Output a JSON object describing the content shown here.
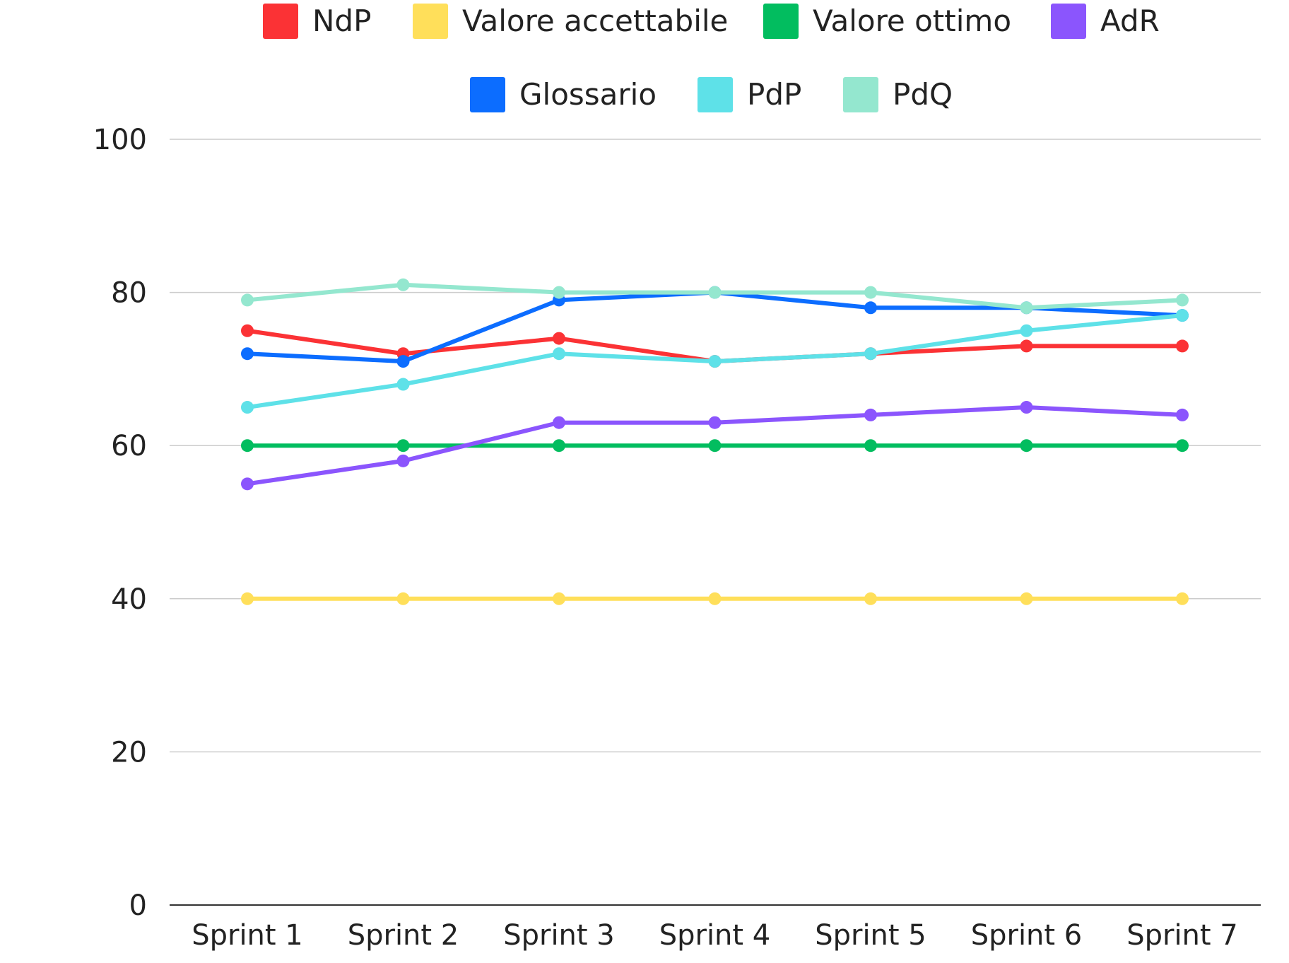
{
  "chart_data": {
    "type": "line",
    "title": "",
    "xlabel": "",
    "ylabel": "",
    "ylim": [
      0,
      100
    ],
    "yticks": [
      0,
      20,
      40,
      60,
      80,
      100
    ],
    "grid": true,
    "legend_position": "top",
    "categories": [
      "Sprint 1",
      "Sprint 2",
      "Sprint 3",
      "Sprint 4",
      "Sprint 5",
      "Sprint 6",
      "Sprint 7"
    ],
    "series": [
      {
        "name": "NdP",
        "color": "#fb3235",
        "values": [
          75,
          72,
          74,
          71,
          72,
          73,
          73
        ]
      },
      {
        "name": "Valore accettabile",
        "color": "#ffdf5a",
        "values": [
          40,
          40,
          40,
          40,
          40,
          40,
          40
        ]
      },
      {
        "name": "Valore ottimo",
        "color": "#02bd5f",
        "values": [
          60,
          60,
          60,
          60,
          60,
          60,
          60
        ]
      },
      {
        "name": "AdR",
        "color": "#8b55fd",
        "values": [
          55,
          58,
          63,
          63,
          64,
          65,
          64
        ]
      },
      {
        "name": "Glossario",
        "color": "#0c6dff",
        "values": [
          72,
          71,
          79,
          80,
          78,
          78,
          77
        ]
      },
      {
        "name": "PdP",
        "color": "#5ee1e8",
        "values": [
          65,
          68,
          72,
          71,
          72,
          75,
          77
        ]
      },
      {
        "name": "PdQ",
        "color": "#94e7cf",
        "values": [
          79,
          81,
          80,
          80,
          80,
          78,
          79
        ]
      }
    ]
  }
}
